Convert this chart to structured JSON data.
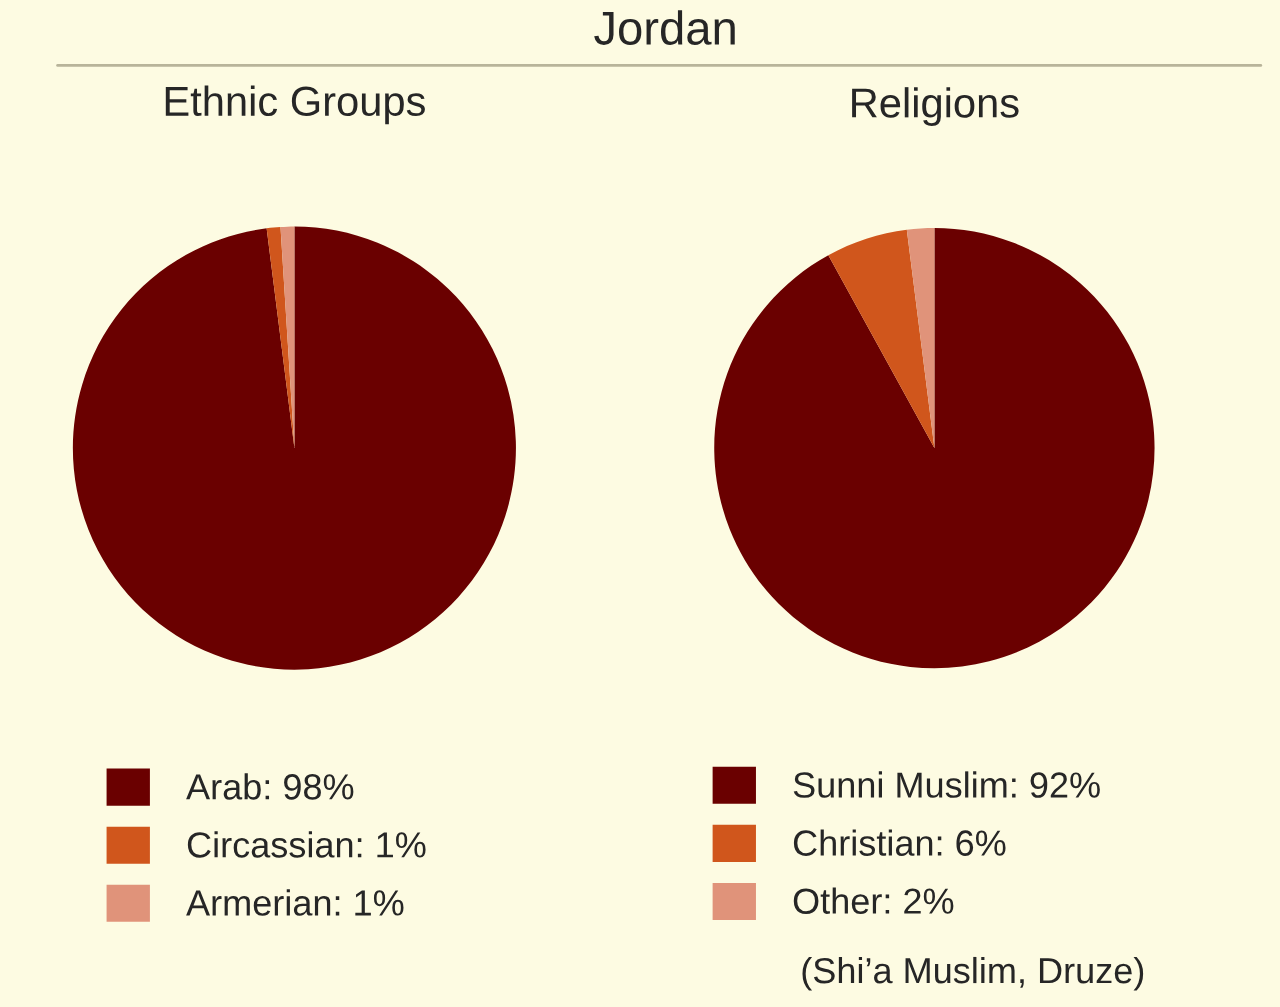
{
  "chart_data": [
    {
      "type": "pie",
      "title": "Ethnic Groups",
      "annotations": [
        "Jordan"
      ],
      "categories": [
        "Arab: 98%",
        "Circassian: 1%",
        "Armerian: 1%"
      ],
      "values": [
        98,
        1,
        1
      ],
      "colors": [
        "#6a0000",
        "#d0561c",
        "#e0937a"
      ],
      "legend": "bottom"
    },
    {
      "type": "pie",
      "title": "Religions",
      "annotations": [
        "(Shi’a Muslim, Druze)"
      ],
      "categories": [
        "Sunni Muslim: 92%",
        "Christian: 6%",
        "Other: 2%"
      ],
      "values": [
        92,
        6,
        2
      ],
      "colors": [
        "#6a0000",
        "#d0561c",
        "#e0937a"
      ],
      "legend": "bottom"
    }
  ]
}
